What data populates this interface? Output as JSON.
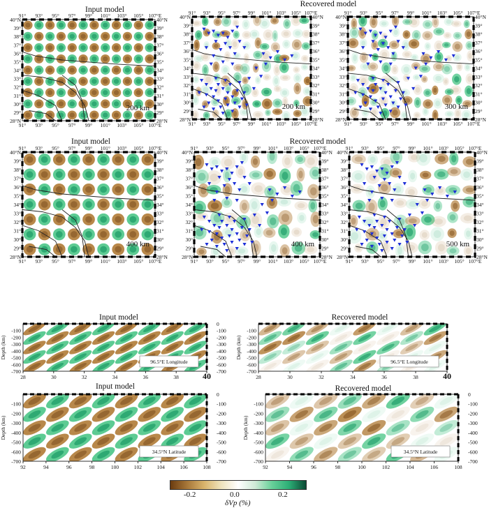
{
  "figure": {
    "titles": {
      "input": "Input model",
      "recovered": "Recovered model"
    },
    "map_panels": [
      {
        "id": "r1-input",
        "title": "Input model",
        "scale_label": "200 km",
        "stations": false
      },
      {
        "id": "r1-rec-200",
        "title": "Recovered model",
        "scale_label": "200 km",
        "stations": true
      },
      {
        "id": "r1-rec-300",
        "title": "",
        "scale_label": "300 km",
        "stations": true
      },
      {
        "id": "r2-input",
        "title": "Input model",
        "scale_label": "400 km",
        "stations": false
      },
      {
        "id": "r2-rec-400",
        "title": "Recovered model",
        "scale_label": "400 km",
        "stations": true
      },
      {
        "id": "r2-rec-500",
        "title": "",
        "scale_label": "500 km",
        "stations": true
      }
    ],
    "map_axes": {
      "lon_ticks": [
        "91°",
        "93°",
        "95°",
        "97°",
        "99°",
        "101°",
        "103°",
        "105°",
        "107°E"
      ],
      "lat_ticks": [
        "28°N",
        "29°",
        "30°",
        "31°",
        "32°",
        "33°",
        "34°",
        "35°",
        "36°",
        "37°",
        "38°",
        "39°",
        "40°N"
      ]
    },
    "sections": [
      {
        "id": "lon-input",
        "title": "Input model",
        "label": "96.5°E Longitude",
        "x_ticks": [
          "28",
          "30",
          "32",
          "34",
          "36",
          "38",
          "40"
        ]
      },
      {
        "id": "lon-rec",
        "title": "Recovered model",
        "label": "96.5°E Longitude",
        "x_ticks": [
          "28",
          "30",
          "32",
          "34",
          "36",
          "38",
          "40"
        ]
      },
      {
        "id": "lat-input",
        "title": "Input model",
        "label": "34.5°N Latitude",
        "x_ticks": [
          "92",
          "94",
          "96",
          "98",
          "100",
          "102",
          "104",
          "106",
          "108"
        ]
      },
      {
        "id": "lat-rec",
        "title": "Recovered model",
        "label": "34.5°N Latitude",
        "x_ticks": [
          "92",
          "94",
          "96",
          "98",
          "100",
          "102",
          "104",
          "106",
          "108"
        ]
      }
    ],
    "depth_axis": {
      "label": "Depth (km)",
      "ticks": [
        "-100",
        "-200",
        "-300",
        "-400",
        "-500",
        "-600",
        "-700"
      ],
      "right_ticks": [
        "0",
        "-100",
        "-200",
        "-300",
        "-400",
        "-500",
        "-600",
        "-700"
      ]
    },
    "colorbar": {
      "ticks": [
        "-0.2",
        "0.0",
        "0.2"
      ],
      "label": "δVp (%)",
      "colors": [
        "#6b3c10",
        "#d9b46c",
        "#ffffff",
        "#67d099",
        "#0b4a34"
      ]
    }
  }
}
